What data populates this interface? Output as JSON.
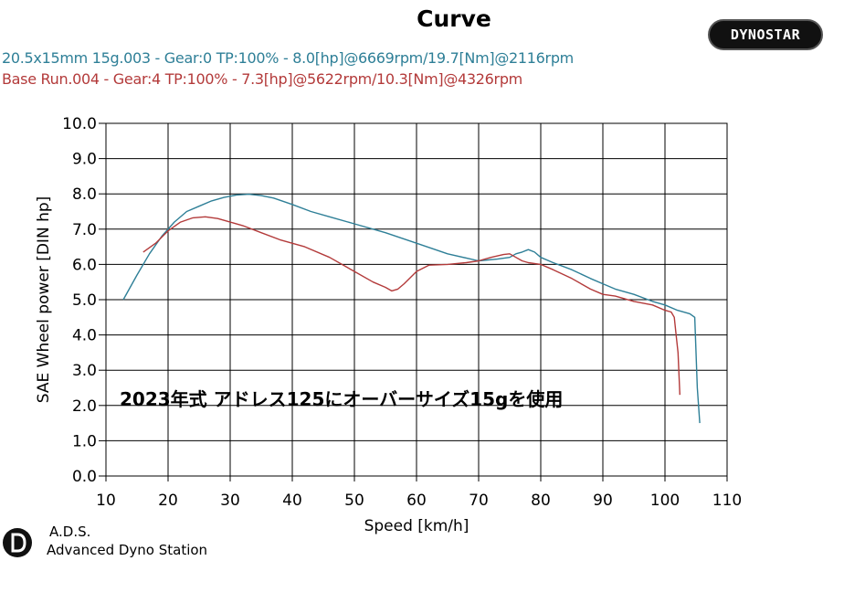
{
  "header": {
    "title": "Curve",
    "brand": "DYNOSTAR"
  },
  "legend": [
    {
      "text": "20.5x15mm 15g.003 - Gear:0 TP:100%  - 8.0[hp]@6669rpm/19.7[Nm]@2116rpm",
      "color": "#2e7f97"
    },
    {
      "text": "Base Run.004 - Gear:4 TP:100%  - 7.3[hp]@5622rpm/10.3[Nm]@4326rpm",
      "color": "#b33a3a"
    }
  ],
  "footer": {
    "name": "A.D.S.",
    "subtitle": "Advanced Dyno Station"
  },
  "chart_data": {
    "type": "line",
    "xlabel": "Speed [km/h]",
    "ylabel": "SAE Wheel power [DIN hp]",
    "xlim": [
      10,
      110
    ],
    "ylim": [
      0,
      10
    ],
    "xticks": [
      "10",
      "20",
      "30",
      "40",
      "50",
      "60",
      "70",
      "80",
      "90",
      "100",
      "110"
    ],
    "yticks": [
      "0.0",
      "1.0",
      "2.0",
      "3.0",
      "4.0",
      "5.0",
      "6.0",
      "7.0",
      "8.0",
      "9.0",
      "10.0"
    ],
    "grid": true,
    "annotation": "2023年式 アドレス125にオーバーサイズ15gを使用",
    "series": [
      {
        "color": "#2e7f97",
        "x": [
          12.8,
          15,
          17,
          19,
          21,
          23,
          25,
          27,
          29,
          31,
          33,
          35,
          37,
          40,
          43,
          46,
          50,
          55,
          60,
          65,
          70,
          73,
          75,
          76,
          77,
          78,
          79,
          80,
          82,
          85,
          88,
          90,
          92,
          95,
          98,
          100,
          102,
          104,
          104.8,
          105.2,
          105.6
        ],
        "y": [
          5.0,
          5.7,
          6.3,
          6.8,
          7.2,
          7.5,
          7.65,
          7.8,
          7.9,
          7.97,
          7.99,
          7.95,
          7.88,
          7.7,
          7.5,
          7.35,
          7.15,
          6.9,
          6.6,
          6.3,
          6.1,
          6.15,
          6.2,
          6.3,
          6.35,
          6.42,
          6.35,
          6.2,
          6.05,
          5.85,
          5.6,
          5.45,
          5.3,
          5.15,
          4.95,
          4.85,
          4.7,
          4.6,
          4.5,
          2.5,
          1.5
        ]
      },
      {
        "color": "#b33a3a",
        "x": [
          16,
          18,
          20,
          22,
          24,
          26,
          28,
          30,
          32,
          35,
          38,
          42,
          46,
          50,
          53,
          55,
          56,
          57,
          58,
          60,
          62,
          65,
          68,
          70,
          72,
          74,
          75,
          76,
          77,
          78,
          80,
          82,
          85,
          88,
          90,
          92,
          95,
          98,
          100,
          101,
          101.5,
          101.8,
          102.1,
          102.4
        ],
        "y": [
          6.35,
          6.6,
          6.95,
          7.2,
          7.32,
          7.35,
          7.3,
          7.2,
          7.1,
          6.9,
          6.7,
          6.5,
          6.2,
          5.8,
          5.5,
          5.35,
          5.25,
          5.3,
          5.45,
          5.8,
          5.98,
          6.0,
          6.05,
          6.1,
          6.2,
          6.28,
          6.3,
          6.2,
          6.1,
          6.05,
          6.0,
          5.85,
          5.6,
          5.3,
          5.15,
          5.1,
          4.95,
          4.85,
          4.7,
          4.65,
          4.5,
          4.0,
          3.5,
          2.3
        ]
      }
    ]
  }
}
